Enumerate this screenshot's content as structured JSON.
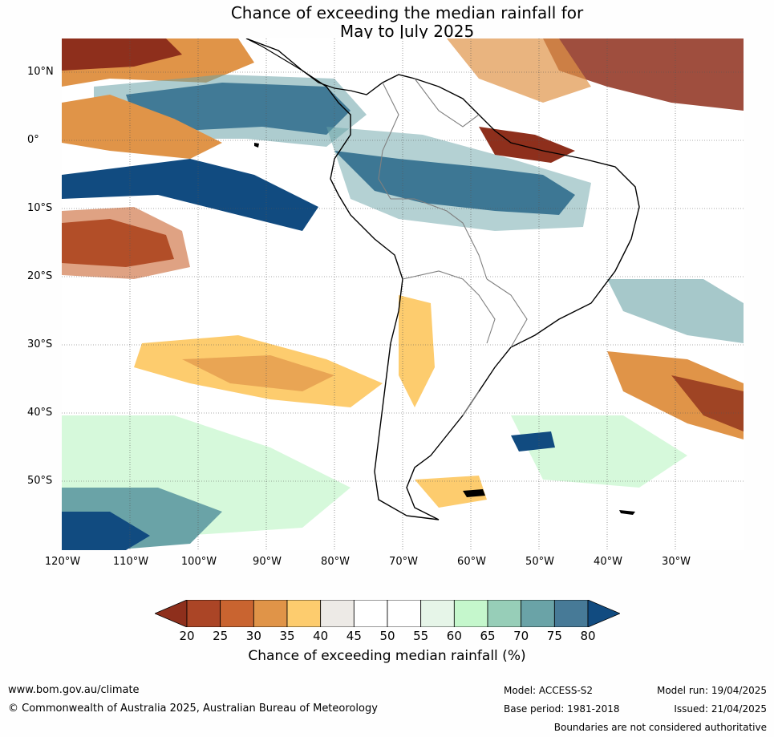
{
  "title": {
    "line1": "Chance of exceeding the median rainfall for",
    "line2": "May to July 2025"
  },
  "map": {
    "region": "South America",
    "lat_labels": [
      "10°N",
      "0°",
      "10°S",
      "20°S",
      "30°S",
      "40°S",
      "50°S"
    ],
    "lon_labels": [
      "120°W",
      "110°W",
      "100°W",
      "90°W",
      "80°W",
      "70°W",
      "60°W",
      "50°W",
      "40°W",
      "30°W"
    ]
  },
  "colorbar": {
    "ticks": [
      "20",
      "25",
      "30",
      "35",
      "40",
      "45",
      "50",
      "55",
      "60",
      "65",
      "70",
      "75",
      "80"
    ],
    "colors": [
      "#8e2f1c",
      "#ab4526",
      "#c96430",
      "#e09448",
      "#fdcc6e",
      "#edeae6",
      "#ffffff",
      "#ffffff",
      "#e6f5e8",
      "#c5f7cc",
      "#97ceb8",
      "#6aa3a7",
      "#477a97",
      "#114b80"
    ],
    "label": "Chance of exceeding median rainfall (%)"
  },
  "footer": {
    "url": "www.bom.gov.au/climate",
    "copyright": "© Commonwealth of Australia 2025, Australian Bureau of Meteorology",
    "model": "Model: ACCESS-S2",
    "base_period": "Base period: 1981-2018",
    "model_run": "Model run: 19/04/2025",
    "issued": "Issued: 21/04/2025",
    "disclaimer": "Boundaries are not considered authoritative"
  }
}
